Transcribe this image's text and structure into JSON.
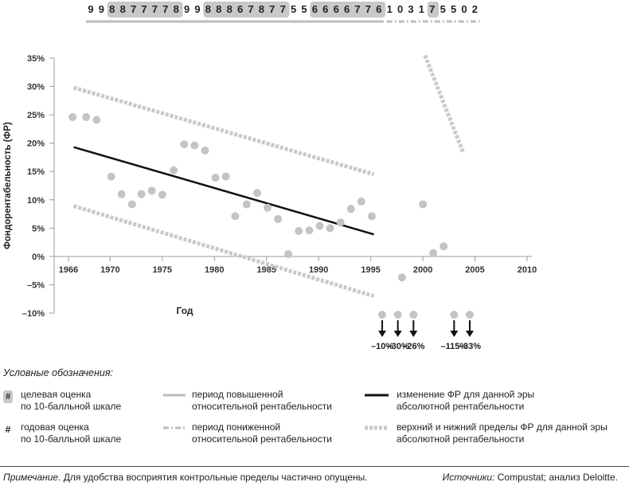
{
  "chart_data": {
    "type": "scatter",
    "title": "",
    "xlabel": "Год",
    "ylabel": "Фондорентабельность (ФР)",
    "xlim": [
      1964,
      2010
    ],
    "ylim": [
      -10,
      35
    ],
    "x_ticks": [
      "1966",
      "1970",
      "1975",
      "1980",
      "1985",
      "1990",
      "1995",
      "2000",
      "2005",
      "2010"
    ],
    "y_ticks": [
      "35%",
      "30%",
      "25%",
      "20%",
      "15%",
      "10%",
      "5%",
      "0%",
      "–5%",
      "–10%"
    ],
    "y_tick_values": [
      35,
      30,
      25,
      20,
      15,
      10,
      5,
      0,
      -5,
      -10
    ],
    "x_tick_values": [
      1966,
      1970,
      1975,
      1980,
      1985,
      1990,
      1995,
      2000,
      2005,
      2010
    ],
    "points": [
      {
        "x": 1966.4,
        "y": 24.6
      },
      {
        "x": 1967.7,
        "y": 24.6
      },
      {
        "x": 1968.7,
        "y": 24.1
      },
      {
        "x": 1970.1,
        "y": 14.1
      },
      {
        "x": 1971.1,
        "y": 11.0
      },
      {
        "x": 1972.1,
        "y": 9.2
      },
      {
        "x": 1973.0,
        "y": 11.0
      },
      {
        "x": 1974.0,
        "y": 11.6
      },
      {
        "x": 1975.0,
        "y": 10.9
      },
      {
        "x": 1976.1,
        "y": 15.2
      },
      {
        "x": 1977.1,
        "y": 19.8
      },
      {
        "x": 1978.1,
        "y": 19.6
      },
      {
        "x": 1979.1,
        "y": 18.7
      },
      {
        "x": 1980.1,
        "y": 13.9
      },
      {
        "x": 1981.1,
        "y": 14.1
      },
      {
        "x": 1982.0,
        "y": 7.1
      },
      {
        "x": 1983.1,
        "y": 9.2
      },
      {
        "x": 1984.1,
        "y": 11.2
      },
      {
        "x": 1985.1,
        "y": 8.6
      },
      {
        "x": 1986.1,
        "y": 6.6
      },
      {
        "x": 1987.1,
        "y": 0.4
      },
      {
        "x": 1988.1,
        "y": 4.5
      },
      {
        "x": 1989.1,
        "y": 4.6
      },
      {
        "x": 1990.1,
        "y": 5.4
      },
      {
        "x": 1991.1,
        "y": 5.0
      },
      {
        "x": 1992.1,
        "y": 6.0
      },
      {
        "x": 1993.1,
        "y": 8.4
      },
      {
        "x": 1994.1,
        "y": 9.7
      },
      {
        "x": 1995.1,
        "y": 7.1
      },
      {
        "x": 1998.0,
        "y": -3.7
      },
      {
        "x": 2000.0,
        "y": 9.2
      },
      {
        "x": 2001.0,
        "y": 0.6
      },
      {
        "x": 2002.0,
        "y": 1.8
      }
    ],
    "trend_line": {
      "from": [
        1966.5,
        19.3
      ],
      "to": [
        1995.3,
        3.9
      ]
    },
    "upper_limit_1": {
      "from": [
        1966.5,
        29.8
      ],
      "to": [
        1995.3,
        14.5
      ]
    },
    "lower_limit_1": {
      "from": [
        1966.5,
        8.9
      ],
      "to": [
        1995.3,
        -7.0
      ]
    },
    "upper_limit_2": {
      "from": [
        2000.2,
        35.5
      ],
      "to": [
        2003.9,
        18.2
      ]
    },
    "offscale": [
      {
        "year": 1996.1,
        "label": "–10%"
      },
      {
        "year": 1997.6,
        "label": "–30%"
      },
      {
        "year": 1999.1,
        "label": "–26%"
      },
      {
        "year": 2003.0,
        "label": "–115%"
      },
      {
        "year": 2004.5,
        "label": "–33%"
      }
    ],
    "scores": [
      {
        "v": "9",
        "boxed": false
      },
      {
        "v": "9",
        "boxed": false
      },
      {
        "v": "8",
        "boxed": true
      },
      {
        "v": "8",
        "boxed": true
      },
      {
        "v": "7",
        "boxed": true
      },
      {
        "v": "7",
        "boxed": true
      },
      {
        "v": "7",
        "boxed": true
      },
      {
        "v": "7",
        "boxed": true
      },
      {
        "v": "8",
        "boxed": true
      },
      {
        "v": "9",
        "boxed": false
      },
      {
        "v": "9",
        "boxed": false
      },
      {
        "v": "8",
        "boxed": true
      },
      {
        "v": "8",
        "boxed": true
      },
      {
        "v": "8",
        "boxed": true
      },
      {
        "v": "6",
        "boxed": true
      },
      {
        "v": "7",
        "boxed": true
      },
      {
        "v": "8",
        "boxed": true
      },
      {
        "v": "7",
        "boxed": true
      },
      {
        "v": "7",
        "boxed": true
      },
      {
        "v": "5",
        "boxed": false
      },
      {
        "v": "5",
        "boxed": false
      },
      {
        "v": "6",
        "boxed": true
      },
      {
        "v": "6",
        "boxed": true
      },
      {
        "v": "6",
        "boxed": true
      },
      {
        "v": "6",
        "boxed": true
      },
      {
        "v": "7",
        "boxed": true
      },
      {
        "v": "7",
        "boxed": true
      },
      {
        "v": "6",
        "boxed": true
      },
      {
        "v": "1",
        "boxed": false
      },
      {
        "v": "0",
        "boxed": false
      },
      {
        "v": "3",
        "boxed": false
      },
      {
        "v": "1",
        "boxed": false
      },
      {
        "v": "7",
        "boxed": true
      },
      {
        "v": "5",
        "boxed": false
      },
      {
        "v": "5",
        "boxed": false
      },
      {
        "v": "0",
        "boxed": false
      },
      {
        "v": "2",
        "boxed": false
      }
    ]
  },
  "legend": {
    "title": "Условные обозначения:",
    "hash_symbol": "#",
    "items": {
      "target_score": "целевая оценка\nпо 10-балльной шкале",
      "annual_score": "годовая оценка\nпо 10-балльной шкале",
      "high_period": "период повышенной\nотносительной рентабельности",
      "low_period": "период пониженной\nотносительной рентабельности",
      "trend": "изменение ФР для данной эры\nабсолютной рентабельности",
      "limits": "верхний и нижний пределы ФР для данной эры\nабсолютной рентабельности"
    }
  },
  "footer": {
    "note_label": "Примечание.",
    "note_text": " Для удобства восприятия контрольные пределы частично опущены.",
    "sources_label": "Источники:",
    "sources_text": " Compustat; анализ Deloitte."
  },
  "colors": {
    "point": "#c4c4c4",
    "trend": "#111111",
    "limit": "#c9c9c9",
    "axis": "#9a9a9a",
    "score_box": "#c8c8c8"
  }
}
